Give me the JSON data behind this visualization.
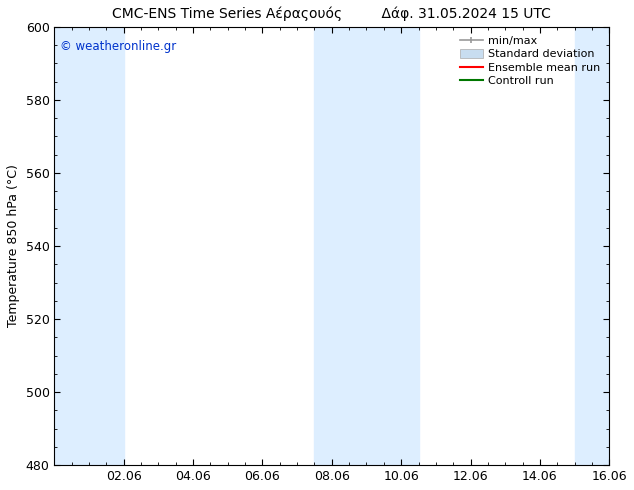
{
  "title": "CMC-ENS Time Series Αέραςουός         Δάφ. 31.05.2024 15 UTC",
  "ylabel": "Temperature 850 hPa (°C)",
  "watermark": "© weatheronline.gr",
  "watermark_color": "#0033cc",
  "ylim": [
    480,
    600
  ],
  "yticks": [
    480,
    500,
    520,
    540,
    560,
    580,
    600
  ],
  "xlim": [
    0,
    16
  ],
  "xtick_labels": [
    "02.06",
    "04.06",
    "06.06",
    "08.06",
    "10.06",
    "12.06",
    "14.06",
    "16.06"
  ],
  "xtick_positions": [
    2,
    4,
    6,
    8,
    10,
    12,
    14,
    16
  ],
  "background_color": "#ffffff",
  "plot_bg_color": "#ffffff",
  "shaded_bands": [
    {
      "x_start": 0.0,
      "x_end": 2.0,
      "color": "#ddeeff"
    },
    {
      "x_start": 7.5,
      "x_end": 9.0,
      "color": "#ddeeff"
    },
    {
      "x_start": 9.0,
      "x_end": 10.5,
      "color": "#ddeeff"
    },
    {
      "x_start": 15.0,
      "x_end": 16.0,
      "color": "#ddeeff"
    }
  ],
  "legend_entries": [
    {
      "label": "min/max",
      "type": "minmax",
      "color": "#999999"
    },
    {
      "label": "Standard deviation",
      "type": "stddev",
      "color": "#c8ddf0"
    },
    {
      "label": "Ensemble mean run",
      "type": "line",
      "color": "#ff0000"
    },
    {
      "label": "Controll run",
      "type": "line",
      "color": "#007700"
    }
  ],
  "grid_color": "#dddddd",
  "font_size_title": 10,
  "font_size_axis": 9,
  "font_size_legend": 8,
  "font_size_ticks": 9
}
